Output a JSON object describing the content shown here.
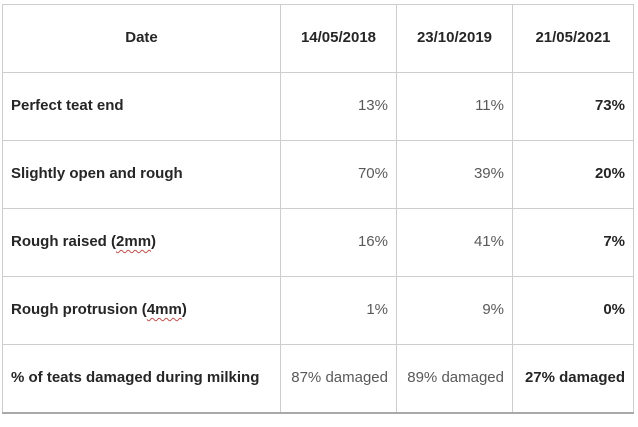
{
  "table": {
    "header": {
      "date_label": "Date",
      "columns": [
        "14/05/2018",
        "23/10/2019",
        "21/05/2021"
      ]
    },
    "rows": [
      {
        "label": "Perfect teat end",
        "values": [
          "13%",
          "11%",
          "73%"
        ]
      },
      {
        "label": "Slightly open and rough",
        "values": [
          "70%",
          "39%",
          "20%"
        ]
      },
      {
        "label_prefix": "Rough raised (",
        "misspelled_word": "2mm",
        "label_suffix": ")",
        "values": [
          "16%",
          "41%",
          "7%"
        ]
      },
      {
        "label_prefix": "Rough protrusion (",
        "misspelled_word": "4mm",
        "label_suffix": ")",
        "values": [
          "1%",
          "9%",
          "0%"
        ]
      },
      {
        "label": "% of teats damaged during milking",
        "values": [
          "87% damaged",
          "89% damaged",
          "27% damaged"
        ]
      }
    ],
    "colors": {
      "background": "#ffffff",
      "border": "#cdcdcd",
      "outer_bottom_border": "#a9a9a9",
      "label_text": "#262626",
      "value_text": "#595959",
      "emphasis_text": "#262626",
      "spellcheck_squiggle": "#c0504d"
    }
  }
}
